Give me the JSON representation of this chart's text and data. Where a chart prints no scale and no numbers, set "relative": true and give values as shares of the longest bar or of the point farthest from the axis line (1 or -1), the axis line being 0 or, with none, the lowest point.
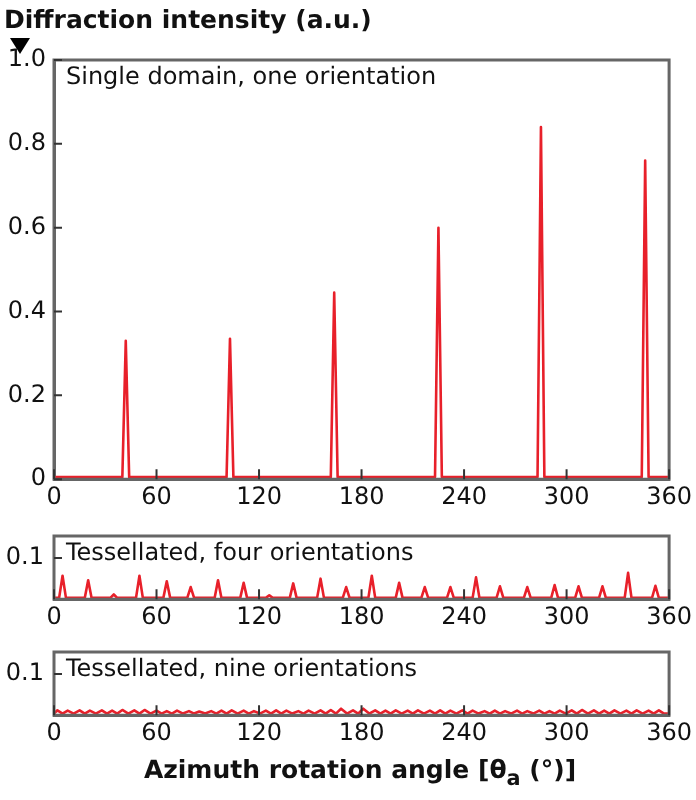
{
  "chart_data": [
    {
      "type": "line",
      "title": "Single domain, one orientation",
      "ylabel": "Diffraction intensity (a.u.)",
      "xlim": [
        0,
        360
      ],
      "xticks": [
        0,
        60,
        120,
        180,
        240,
        300,
        360
      ],
      "ylim": [
        0,
        1
      ],
      "yticks": [
        0,
        0.2,
        0.4,
        0.6,
        0.8,
        {
          "value": 1,
          "label": "1.0"
        }
      ],
      "grid": false,
      "legend": false,
      "marker": "none",
      "line_style": "solid",
      "series": [
        {
          "color": "#e8202a",
          "x": [
            0,
            40,
            42,
            44,
            101,
            103,
            105,
            162,
            164,
            166,
            223,
            225,
            227,
            283,
            285,
            287,
            344,
            346,
            348,
            360
          ],
          "values": [
            0.005,
            0.005,
            0.33,
            0.005,
            0.005,
            0.335,
            0.005,
            0.005,
            0.445,
            0.005,
            0.005,
            0.6,
            0.005,
            0.005,
            0.84,
            0.005,
            0.005,
            0.76,
            0.005,
            0.005
          ]
        }
      ]
    },
    {
      "type": "line",
      "title": "Tessellated, four orientations",
      "annotations": [
        "0.1"
      ],
      "relative": true,
      "xlim": [
        0,
        360
      ],
      "xticks": [
        0,
        60,
        120,
        180,
        240,
        300,
        360
      ],
      "grid": false,
      "legend": false,
      "marker": "none",
      "line_style": "solid",
      "series": [
        {
          "color": "#e8202a",
          "x": [
            0,
            3,
            5,
            7,
            18,
            20,
            22,
            33,
            35,
            37,
            48,
            50,
            52,
            64,
            66,
            68,
            78,
            80,
            82,
            94,
            96,
            98,
            109,
            111,
            113,
            124,
            126,
            128,
            138,
            140,
            142,
            154,
            156,
            158,
            169,
            171,
            173,
            184,
            186,
            188,
            200,
            202,
            204,
            215,
            217,
            219,
            230,
            232,
            234,
            245,
            247,
            249,
            259,
            261,
            263,
            275,
            277,
            279,
            291,
            293,
            295,
            305,
            307,
            309,
            319,
            321,
            323,
            334,
            336,
            338,
            350,
            352,
            354,
            360
          ],
          "values": [
            0.05,
            0.05,
            0.89,
            0.05,
            0.05,
            0.72,
            0.05,
            0.05,
            0.18,
            0.05,
            0.05,
            0.89,
            0.05,
            0.05,
            0.68,
            0.05,
            0.05,
            0.46,
            0.05,
            0.05,
            0.72,
            0.05,
            0.05,
            0.62,
            0.05,
            0.05,
            0.15,
            0.05,
            0.05,
            0.6,
            0.05,
            0.05,
            0.78,
            0.05,
            0.05,
            0.46,
            0.05,
            0.05,
            0.89,
            0.05,
            0.05,
            0.62,
            0.05,
            0.05,
            0.46,
            0.05,
            0.05,
            0.46,
            0.05,
            0.05,
            0.83,
            0.05,
            0.05,
            0.49,
            0.05,
            0.05,
            0.46,
            0.05,
            0.05,
            0.54,
            0.05,
            0.05,
            0.49,
            0.05,
            0.05,
            0.49,
            0.05,
            0.05,
            1,
            0.05,
            0.05,
            0.51,
            0.05,
            0.05
          ]
        }
      ]
    },
    {
      "type": "line",
      "title": "Tessellated, nine orientations",
      "annotations": [
        "0.1"
      ],
      "relative": true,
      "xlabel": "Azimuth rotation angle [θ$_{a}$ (°)]",
      "xlim": [
        0,
        360
      ],
      "xticks": [
        0,
        60,
        120,
        180,
        240,
        300,
        360
      ],
      "grid": false,
      "legend": false,
      "marker": "none",
      "line_style": "solid",
      "series": [
        {
          "color": "#e8202a",
          "x": [
            0,
            2,
            5,
            8,
            11.5,
            15,
            18,
            21,
            24.5,
            28,
            31,
            34,
            37,
            40,
            43.5,
            47,
            50,
            53,
            56.5,
            60,
            63,
            66,
            69,
            72,
            75.5,
            79,
            82,
            85,
            88.5,
            92,
            95,
            98,
            101,
            104,
            107.5,
            111,
            114,
            117,
            120.5,
            124,
            127,
            130,
            133,
            136,
            139.5,
            143,
            146,
            149,
            152.5,
            156,
            159,
            162,
            165,
            168,
            171.5,
            175,
            178,
            181,
            184.5,
            188,
            191,
            194,
            197,
            200,
            203.5,
            207,
            210,
            213,
            216.5,
            220,
            223,
            226,
            229,
            232,
            235.5,
            239,
            242,
            245,
            248.5,
            252,
            255,
            258,
            261,
            264,
            267.5,
            271,
            274,
            277,
            280.5,
            284,
            287,
            290,
            293,
            296,
            299.5,
            303,
            306,
            309,
            312.5,
            316,
            319,
            322,
            325,
            328,
            331.5,
            335,
            338,
            341,
            344.5,
            348,
            351,
            354,
            357,
            360
          ],
          "values": [
            0.25,
            0.75,
            0.25,
            0.7,
            0.25,
            0.75,
            0.25,
            0.7,
            0.25,
            0.75,
            0.25,
            0.7,
            0.25,
            0.8,
            0.25,
            0.75,
            0.25,
            0.8,
            0.25,
            0.7,
            0.25,
            0.62,
            0.25,
            0.7,
            0.25,
            0.62,
            0.25,
            0.56,
            0.25,
            0.62,
            0.25,
            0.7,
            0.25,
            0.75,
            0.25,
            0.7,
            0.25,
            0.62,
            0.25,
            0.7,
            0.25,
            0.75,
            0.25,
            0.7,
            0.25,
            0.62,
            0.25,
            0.7,
            0.25,
            0.75,
            0.25,
            0.8,
            0.25,
            1,
            0.25,
            0.75,
            0.25,
            1,
            0.25,
            0.75,
            0.25,
            0.7,
            0.25,
            0.75,
            0.25,
            0.7,
            0.25,
            0.75,
            0.25,
            0.7,
            0.25,
            0.75,
            0.25,
            0.7,
            0.25,
            0.75,
            0.25,
            0.7,
            0.25,
            0.62,
            0.25,
            0.7,
            0.25,
            0.62,
            0.25,
            0.7,
            0.25,
            0.62,
            0.25,
            0.7,
            0.25,
            0.62,
            0.25,
            0.7,
            0.25,
            0.75,
            0.25,
            0.8,
            0.25,
            0.75,
            0.25,
            0.7,
            0.25,
            0.75,
            0.25,
            0.7,
            0.25,
            0.75,
            0.25,
            0.7,
            0.25,
            0.75,
            0.25,
            0.25
          ]
        }
      ]
    }
  ]
}
